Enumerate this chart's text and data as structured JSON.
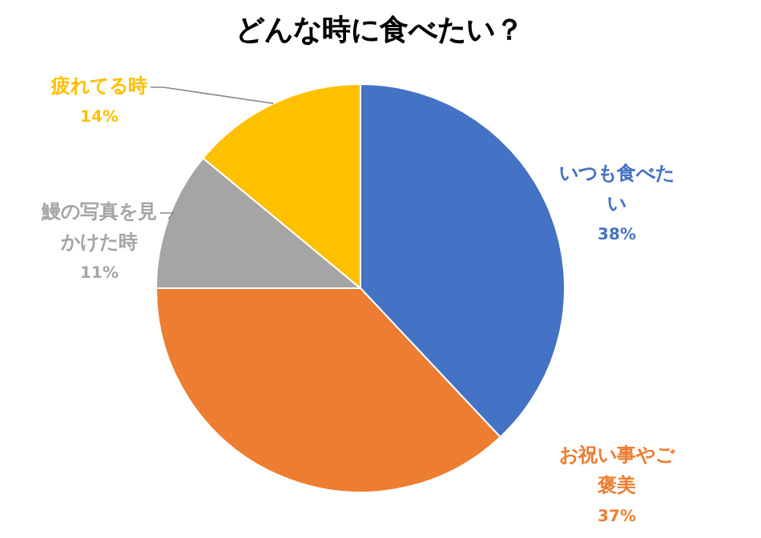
{
  "chart_data": {
    "type": "pie",
    "title": "どんな時に食べたい？",
    "categories": [
      "いつも食べたい",
      "お祝い事やご褒美",
      "鰻の写真を見かけた時",
      "疲れてる時"
    ],
    "values": [
      38,
      37,
      11,
      14
    ],
    "colors": [
      "#4472c4",
      "#ed7d31",
      "#a5a5a5",
      "#ffc000"
    ],
    "value_labels": [
      "38%",
      "37%",
      "11%",
      "14%"
    ],
    "legend": false
  }
}
